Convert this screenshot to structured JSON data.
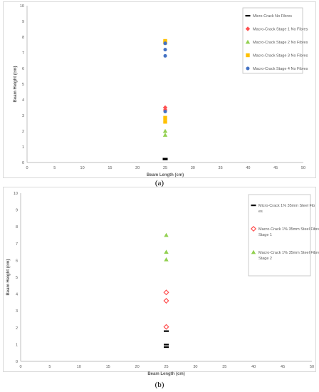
{
  "chart_data": [
    {
      "type": "scatter",
      "panel_label": "(a)",
      "xlabel": "Beam Length (cm)",
      "ylabel": "Beam Height (cm)",
      "xlim": [
        0,
        50
      ],
      "ylim": [
        0,
        10
      ],
      "xticks": [
        0,
        5,
        10,
        15,
        20,
        25,
        30,
        35,
        40,
        45,
        50
      ],
      "yticks": [
        0,
        1,
        2,
        3,
        4,
        5,
        6,
        7,
        8,
        9,
        10
      ],
      "grid": false,
      "legend_position": "top-right",
      "series": [
        {
          "name": "Micro-Crack No Fibres",
          "marker": "dash",
          "color": "#000000",
          "points": [
            [
              25,
              0.2
            ],
            [
              25,
              0.25
            ]
          ]
        },
        {
          "name": "Macro-Crack Stage 1 No Fibres",
          "marker": "diamond",
          "color": "#ff5050",
          "points": [
            [
              25,
              3.5
            ],
            [
              25,
              3.35
            ]
          ]
        },
        {
          "name": "Macro-Crack Stage 2 No Fibres",
          "marker": "triangle",
          "color": "#92d050",
          "points": [
            [
              25,
              2.0
            ],
            [
              25,
              1.75
            ]
          ]
        },
        {
          "name": "Macro-Crack Stage 3 No Fibres",
          "marker": "square",
          "color": "#ffc000",
          "points": [
            [
              25,
              7.75
            ],
            [
              25,
              7.65
            ],
            [
              25,
              2.85
            ],
            [
              25,
              2.6
            ]
          ]
        },
        {
          "name": "Macro-Crack Stage 4 No Fibres",
          "marker": "circle",
          "color": "#4472c4",
          "points": [
            [
              25,
              7.6
            ],
            [
              25,
              7.2
            ],
            [
              25,
              6.8
            ],
            [
              25,
              3.25
            ]
          ]
        }
      ]
    },
    {
      "type": "scatter",
      "panel_label": "(b)",
      "xlabel": "Beam Length (cm)",
      "ylabel": "Beam Height (cm)",
      "xlim": [
        0,
        50
      ],
      "ylim": [
        0,
        10
      ],
      "xticks": [
        0,
        5,
        10,
        15,
        20,
        25,
        30,
        35,
        40,
        45,
        50
      ],
      "yticks": [
        0,
        1,
        2,
        3,
        4,
        5,
        6,
        7,
        8,
        9,
        10
      ],
      "grid": false,
      "legend_position": "top-right",
      "series": [
        {
          "name": "Micro-Crack 1% 35mm Steel Fibres",
          "marker": "dash",
          "color": "#000000",
          "points": [
            [
              25,
              1.8
            ],
            [
              25,
              1.0
            ],
            [
              25,
              0.85
            ]
          ]
        },
        {
          "name": "Macro-Crack 1% 35mm Steel Fibres Stage 1",
          "marker": "diamond-open",
          "color": "#ff5050",
          "points": [
            [
              25,
              4.1
            ],
            [
              25,
              3.6
            ],
            [
              25,
              2.05
            ]
          ]
        },
        {
          "name": "Macro-Crack 1% 35mm Steel Fibres Stage 2",
          "marker": "triangle",
          "color": "#92d050",
          "points": [
            [
              25,
              7.5
            ],
            [
              25,
              6.5
            ],
            [
              25,
              6.05
            ]
          ]
        }
      ]
    }
  ]
}
